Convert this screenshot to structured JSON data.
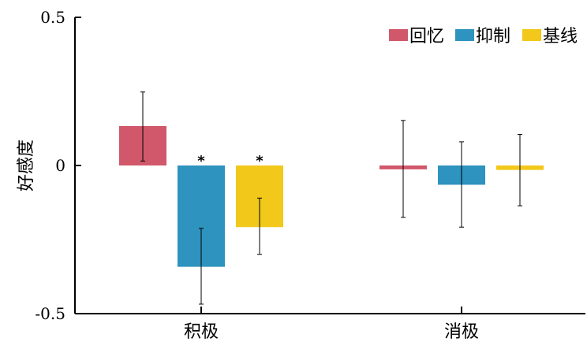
{
  "chart_data": {
    "type": "bar",
    "ylabel": "好感度",
    "ylim": [
      -0.5,
      0.5
    ],
    "yticks": [
      {
        "value": 0.5,
        "label": "0.5"
      },
      {
        "value": 0,
        "label": "0"
      },
      {
        "value": -0.5,
        "label": "-0.5"
      }
    ],
    "categories": [
      "积极",
      "消极"
    ],
    "legend_position": "top-right",
    "series": [
      {
        "name": "回忆",
        "color": "#d1586b",
        "values": [
          0.133,
          -0.013
        ],
        "error_low": [
          0.015,
          -0.175
        ],
        "error_high": [
          0.248,
          0.152
        ]
      },
      {
        "name": "抑制",
        "color": "#2e93be",
        "values": [
          -0.342,
          -0.065
        ],
        "error_low": [
          -0.468,
          -0.208
        ],
        "error_high": [
          -0.212,
          0.08
        ]
      },
      {
        "name": "基线",
        "color": "#f2c81a",
        "values": [
          -0.208,
          -0.015
        ],
        "error_low": [
          -0.3,
          -0.136
        ],
        "error_high": [
          -0.11,
          0.105
        ]
      }
    ],
    "significance": [
      {
        "category_index": 0,
        "series_index": 1,
        "mark": "*"
      },
      {
        "category_index": 0,
        "series_index": 2,
        "mark": "*"
      }
    ]
  }
}
